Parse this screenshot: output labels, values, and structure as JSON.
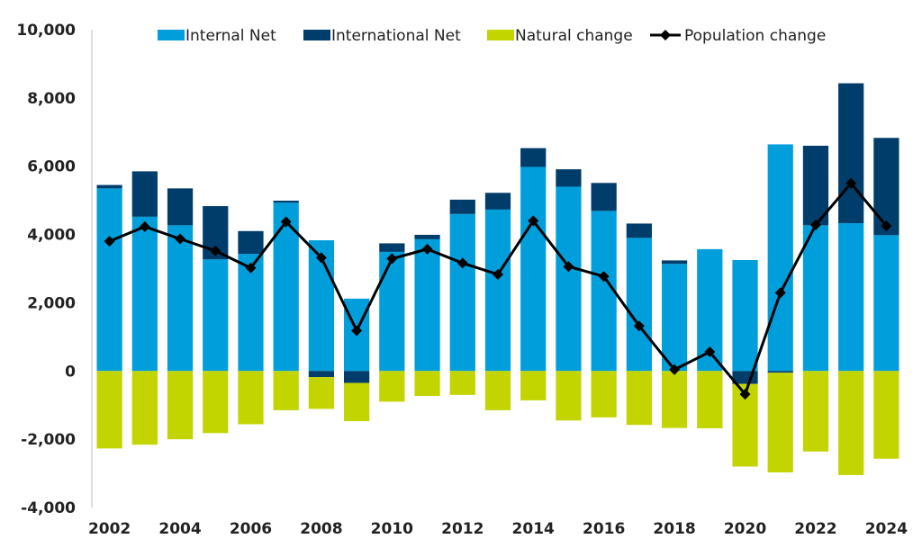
{
  "chart_data": {
    "type": "bar",
    "stacked": true,
    "title": "",
    "xlabel": "",
    "ylabel": "",
    "ylim": [
      -4000,
      10000
    ],
    "yticks": [
      -4000,
      -2000,
      0,
      2000,
      4000,
      6000,
      8000,
      10000
    ],
    "ytick_labels": [
      "-4,000",
      "-2,000",
      "0",
      "2,000",
      "4,000",
      "6,000",
      "8,000",
      "10,000"
    ],
    "categories": [
      "2002",
      "2003",
      "2004",
      "2005",
      "2006",
      "2007",
      "2008",
      "2009",
      "2010",
      "2011",
      "2012",
      "2013",
      "2014",
      "2015",
      "2016",
      "2017",
      "2018",
      "2019",
      "2020",
      "2021",
      "2022",
      "2023",
      "2024"
    ],
    "xtick_labels": [
      "2002",
      "",
      "2004",
      "",
      "2006",
      "",
      "2008",
      "",
      "2010",
      "",
      "2012",
      "",
      "2014",
      "",
      "2016",
      "",
      "2018",
      "",
      "2020",
      "",
      "2022",
      "",
      "2024"
    ],
    "legend_position": "top",
    "series": [
      {
        "name": "Internal Net",
        "kind": "bar",
        "color": "#009fdb",
        "values": [
          5350,
          4520,
          4270,
          3270,
          3430,
          4930,
          3830,
          2120,
          3490,
          3860,
          4600,
          4730,
          5980,
          5400,
          4690,
          3900,
          3140,
          3570,
          3250,
          6640,
          4270,
          4330,
          3980
        ]
      },
      {
        "name": "International Net",
        "kind": "bar",
        "color": "#003d6b",
        "values": [
          100,
          1330,
          1080,
          1560,
          670,
          60,
          -180,
          -350,
          250,
          130,
          420,
          490,
          550,
          510,
          820,
          420,
          100,
          0,
          -380,
          -50,
          2330,
          4100,
          2850
        ]
      },
      {
        "name": "Natural change",
        "kind": "bar",
        "color": "#c2d500",
        "values": [
          -2270,
          -2160,
          -2000,
          -1820,
          -1560,
          -1150,
          -930,
          -1120,
          -900,
          -730,
          -700,
          -1150,
          -860,
          -1450,
          -1360,
          -1580,
          -1670,
          -1680,
          -2420,
          -2920,
          -2360,
          -3050,
          -2570
        ]
      },
      {
        "name": "Population change",
        "kind": "line",
        "color": "#000000",
        "values": [
          3800,
          4230,
          3870,
          3520,
          3020,
          4370,
          3320,
          1180,
          3290,
          3570,
          3160,
          2830,
          4400,
          3060,
          2770,
          1320,
          40,
          560,
          -680,
          2290,
          4280,
          5500,
          4250
        ]
      }
    ]
  }
}
